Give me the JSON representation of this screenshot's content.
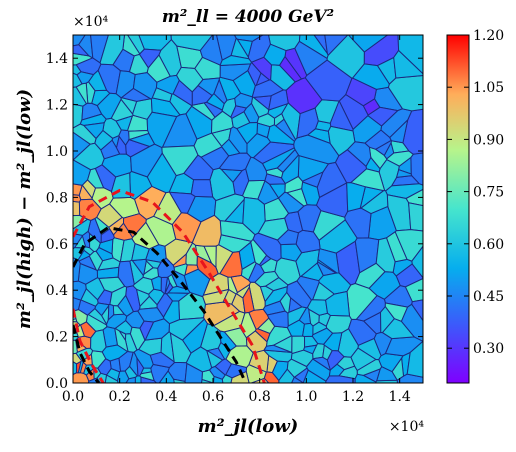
{
  "chart_data": {
    "type": "heatmap",
    "subtype": "voronoi-tessellation",
    "title": "m²_ll = 4000 GeV²",
    "xlabel": "m²_jl(low)",
    "ylabel": "m²_jl(high) − m²_jl(low)",
    "x_scale_label": "×10⁴",
    "y_scale_label": "×10⁴",
    "xlim": [
      0,
      15000
    ],
    "ylim": [
      0,
      15000
    ],
    "x_ticks": [
      "0.0",
      "0.2",
      "0.4",
      "0.6",
      "0.8",
      "1.0",
      "1.2",
      "1.4"
    ],
    "y_ticks": [
      "0.0",
      "0.2",
      "0.4",
      "0.6",
      "0.8",
      "1.0",
      "1.2",
      "1.4"
    ],
    "colorbar": {
      "colormap": "rainbow",
      "vmin": 0.2,
      "vmax": 1.2,
      "ticks": [
        "0.30",
        "0.45",
        "0.60",
        "0.75",
        "0.90",
        "1.05",
        "1.20"
      ]
    },
    "curves": [
      {
        "style": "black-dashed",
        "points": [
          [
            0,
            5000
          ],
          [
            500,
            6000
          ],
          [
            1500,
            6700
          ],
          [
            2600,
            6500
          ],
          [
            3600,
            5600
          ],
          [
            4600,
            4400
          ],
          [
            5600,
            3100
          ],
          [
            6300,
            2000
          ],
          [
            7000,
            900
          ],
          [
            7400,
            0
          ]
        ]
      },
      {
        "style": "red-dashed",
        "points": [
          [
            0,
            6300
          ],
          [
            700,
            7600
          ],
          [
            2000,
            8300
          ],
          [
            3400,
            7800
          ],
          [
            4700,
            6500
          ],
          [
            5800,
            4800
          ],
          [
            6800,
            3100
          ],
          [
            7700,
            1600
          ],
          [
            8200,
            0
          ]
        ]
      },
      {
        "style": "red-dashed",
        "points": [
          [
            0,
            3200
          ],
          [
            300,
            1800
          ],
          [
            800,
            800
          ],
          [
            1300,
            0
          ]
        ]
      },
      {
        "style": "black-dashed",
        "points": [
          [
            0,
            2500
          ],
          [
            300,
            1300
          ],
          [
            700,
            500
          ],
          [
            1100,
            0
          ]
        ]
      }
    ]
  }
}
